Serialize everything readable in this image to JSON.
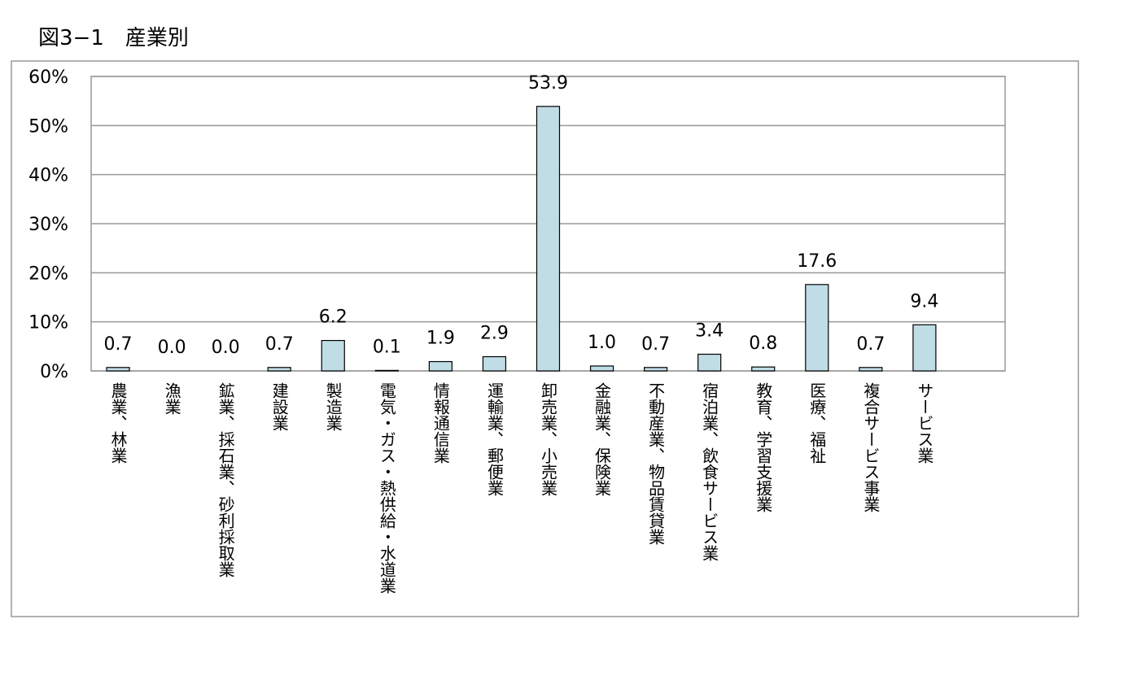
{
  "chart_data": {
    "type": "bar",
    "title": "図3−1　産業別",
    "categories": [
      "農業、林業",
      "漁業",
      "鉱業、採石業、砂利採取業",
      "建設業",
      "製造業",
      "電気・ガス・熱供給・水道業",
      "情報通信業",
      "運輸業、郵便業",
      "卸売業、小売業",
      "金融業、保険業",
      "不動産業、物品賃貸業",
      "宿泊業、飲食サービス業",
      "教育、学習支援業",
      "医療、福祉",
      "複合サービス事業",
      "サービス業"
    ],
    "values": [
      0.7,
      0.0,
      0.0,
      0.7,
      6.2,
      0.1,
      1.9,
      2.9,
      53.9,
      1.0,
      0.7,
      3.4,
      0.8,
      17.6,
      0.7,
      9.4
    ],
    "value_labels": [
      "0.7",
      "0.0",
      "0.0",
      "0.7",
      "6.2",
      "0.1",
      "1.9",
      "2.9",
      "53.9",
      "1.0",
      "0.7",
      "3.4",
      "0.8",
      "17.6",
      "0.7",
      "9.4"
    ],
    "color": "#c0dde6",
    "ylim": [
      0,
      60
    ],
    "yticks": [
      {
        "value": 0,
        "label": "0%"
      },
      {
        "value": 10,
        "label": "10%"
      },
      {
        "value": 20,
        "label": "20%"
      },
      {
        "value": 30,
        "label": "30%"
      },
      {
        "value": 40,
        "label": "40%"
      },
      {
        "value": 50,
        "label": "50%"
      },
      {
        "value": 60,
        "label": "60%"
      }
    ],
    "grid": true
  }
}
